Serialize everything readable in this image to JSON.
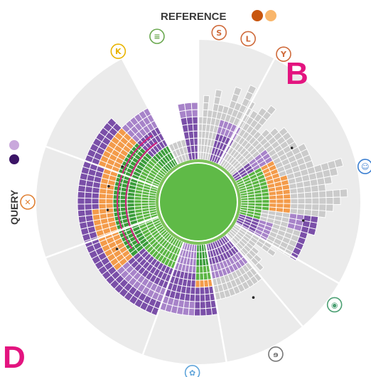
{
  "legend": {
    "reference_label": "REFERENCE",
    "reference_colors": [
      "#c8560e",
      "#f9b66b"
    ],
    "query_label": "QUERY",
    "query_colors": [
      "#c9a8dc",
      "#3b1466"
    ]
  },
  "panels": {
    "top_right": "B",
    "bottom_left": "D"
  },
  "colors": {
    "center": "#5fba47",
    "core_ring": "#7dc25a",
    "green_dark": "#3a9c3a",
    "green_mid": "#5bb544",
    "orange": "#f39b4a",
    "purple": "#7a4fa8",
    "purple_light": "#a783c9",
    "grey": "#cbcbcb",
    "grey_bg": "#ebebeb",
    "magenta": "#d6217d"
  },
  "icons": [
    {
      "name": "kidney-icon",
      "angle": -118,
      "color": "#e9b400"
    },
    {
      "name": "intestine-icon",
      "angle": -104,
      "color": "#6aa84f"
    },
    {
      "name": "stomach-icon",
      "angle": -83,
      "color": "#cf6a3a"
    },
    {
      "name": "lungs-icon",
      "angle": -73,
      "color": "#cf6a3a"
    },
    {
      "name": "uterus-icon",
      "angle": -60,
      "color": "#cf6a3a"
    },
    {
      "name": "head-icon",
      "angle": -12,
      "color": "#3b7fd1"
    },
    {
      "name": "eye-icon",
      "angle": 37,
      "color": "#4a9f72"
    },
    {
      "name": "ear-icon",
      "angle": 63,
      "color": "#777777"
    },
    {
      "name": "brain-icon",
      "angle": 92,
      "color": "#5fa4da"
    },
    {
      "name": "bone-icon",
      "angle": 180,
      "color": "#e08033"
    }
  ]
}
